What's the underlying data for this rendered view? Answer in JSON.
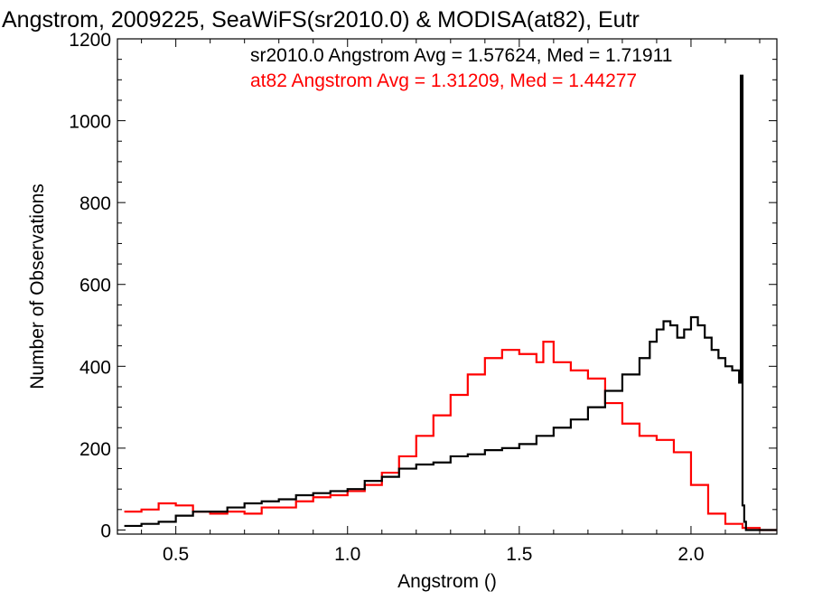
{
  "chart_data": {
    "type": "line",
    "title": "Angstrom, 2009225, SeaWiFS(sr2010.0) & MODISA(at82), Eutr",
    "xlabel": "Angstrom ()",
    "ylabel": "Number of Observations",
    "xlim": [
      0.33,
      2.25
    ],
    "ylim": [
      -10,
      1200
    ],
    "x_ticks": [
      0.5,
      1.0,
      1.5,
      2.0
    ],
    "x_tick_labels": [
      "0.5",
      "1.0",
      "1.5",
      "2.0"
    ],
    "y_ticks": [
      0,
      200,
      400,
      600,
      800,
      1000,
      1200
    ],
    "y_tick_labels": [
      "0",
      "200",
      "400",
      "600",
      "800",
      "1000",
      "1200"
    ],
    "grid": false,
    "annotations": [
      {
        "text": "sr2010.0 Angstrom Avg = 1.57624, Med = 1.71911",
        "color": "#000000"
      },
      {
        "text": "at82 Angstrom Avg = 1.31209, Med = 1.44277",
        "color": "#ff0000"
      }
    ],
    "step_histogram": true,
    "series": [
      {
        "color": "#000000",
        "x": [
          0.35,
          0.4,
          0.45,
          0.5,
          0.55,
          0.6,
          0.65,
          0.7,
          0.75,
          0.8,
          0.85,
          0.9,
          0.95,
          1.0,
          1.05,
          1.1,
          1.15,
          1.2,
          1.25,
          1.3,
          1.35,
          1.4,
          1.45,
          1.5,
          1.55,
          1.6,
          1.65,
          1.7,
          1.75,
          1.8,
          1.85,
          1.88,
          1.9,
          1.92,
          1.94,
          1.96,
          1.98,
          2.0,
          2.02,
          2.04,
          2.06,
          2.08,
          2.1,
          2.12,
          2.14,
          2.145,
          2.15,
          2.155,
          2.16,
          2.17,
          2.25
        ],
        "y": [
          10,
          15,
          20,
          35,
          45,
          45,
          55,
          65,
          70,
          75,
          85,
          90,
          95,
          100,
          120,
          130,
          150,
          160,
          165,
          180,
          185,
          195,
          200,
          210,
          230,
          250,
          270,
          300,
          340,
          380,
          420,
          460,
          490,
          510,
          500,
          470,
          490,
          520,
          500,
          470,
          440,
          420,
          400,
          390,
          360,
          1110,
          60,
          20,
          0,
          0,
          0
        ]
      },
      {
        "color": "#ff0000",
        "x": [
          0.35,
          0.4,
          0.45,
          0.5,
          0.55,
          0.6,
          0.65,
          0.7,
          0.75,
          0.8,
          0.85,
          0.9,
          0.95,
          1.0,
          1.05,
          1.1,
          1.15,
          1.2,
          1.25,
          1.3,
          1.35,
          1.4,
          1.45,
          1.5,
          1.55,
          1.57,
          1.6,
          1.65,
          1.7,
          1.75,
          1.8,
          1.85,
          1.9,
          1.95,
          2.0,
          2.05,
          2.1,
          2.15,
          2.2,
          2.25
        ],
        "y": [
          45,
          50,
          65,
          60,
          45,
          40,
          45,
          40,
          55,
          55,
          70,
          80,
          85,
          95,
          110,
          140,
          180,
          230,
          280,
          330,
          380,
          420,
          440,
          430,
          410,
          460,
          410,
          390,
          370,
          310,
          260,
          230,
          220,
          190,
          110,
          40,
          15,
          5,
          0,
          0
        ]
      }
    ]
  }
}
